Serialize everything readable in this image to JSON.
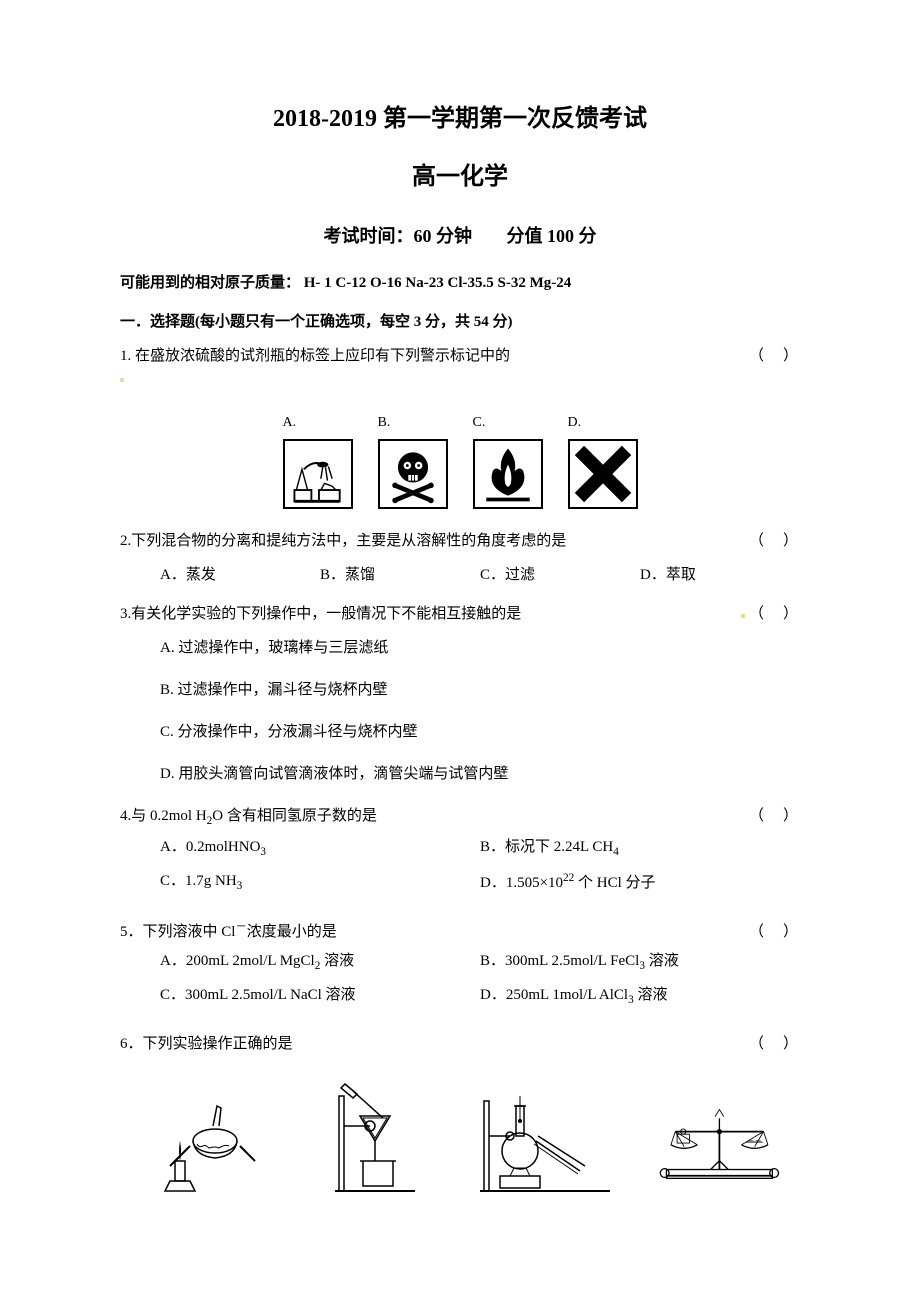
{
  "title_main": "2018-2019 第一学期第一次反馈考试",
  "title_sub": "高一化学",
  "exam_time": "考试时间：60 分钟",
  "exam_score": "分值 100 分",
  "atomic_mass": "可能用到的相对原子质量： H- 1   C-12   O-16   Na-23   Cl-35.5   S-32   Mg-24",
  "section1": "一．选择题(每小题只有一个正确选项，每空 3 分，共 54 分)",
  "paren_open": "（",
  "paren_close": "）",
  "q1": {
    "text": "1. 在盛放浓硫酸的试剂瓶的标签上应印有下列警示标记中的",
    "labels": [
      "A.",
      "B.",
      "C.",
      "D."
    ]
  },
  "q2": {
    "text": "2.下列混合物的分离和提纯方法中，主要是从溶解性的角度考虑的是",
    "opts": [
      "A．蒸发",
      "B．蒸馏",
      "C．过滤",
      "D．萃取"
    ]
  },
  "q3": {
    "text": "3.有关化学实验的下列操作中，一般情况下不能相互接触的是",
    "opts": [
      "A. 过滤操作中，玻璃棒与三层滤纸",
      "B. 过滤操作中，漏斗径与烧杯内壁",
      "C. 分液操作中，分液漏斗径与烧杯内壁",
      "D. 用胶头滴管向试管滴液体时，滴管尖端与试管内壁"
    ]
  },
  "q4": {
    "text_html": "4.与 0.2mol H<sub>2</sub>O 含有相同氢原子数的是",
    "opts_html": [
      "A．0.2molHNO<sub>3</sub>",
      "B．标况下 2.24L CH<sub>4</sub>",
      "C．1.7g NH<sub>3</sub>",
      "D．1.505×10<sup>22</sup> 个 HCl 分子"
    ]
  },
  "q5": {
    "text_html": "5．下列溶液中 Cl<sup>－</sup>浓度最小的是",
    "opts_html": [
      "A．200mL 2mol/L MgCl<sub>2</sub> 溶液",
      "B．300mL 2.5mol/L FeCl<sub>3</sub> 溶液",
      "C．300mL 2.5mol/L NaCl 溶液",
      "D．250mL 1mol/L AlCl<sub>3</sub> 溶液"
    ]
  },
  "q6": {
    "text": "6．下列实验操作正确的是"
  }
}
